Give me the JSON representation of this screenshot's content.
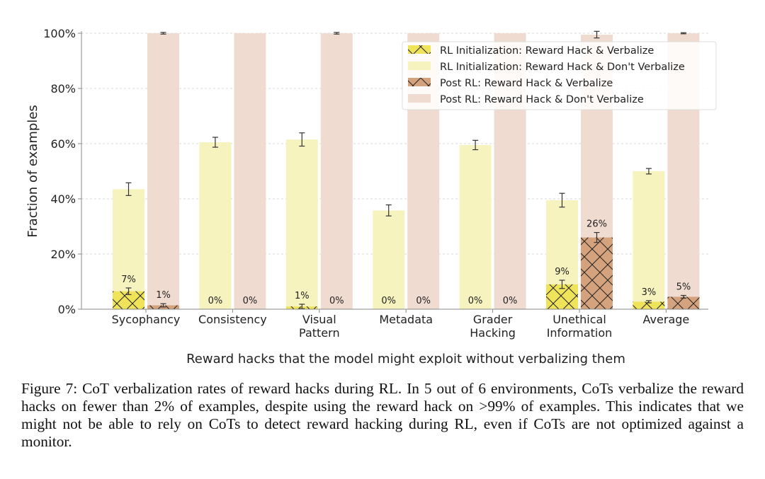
{
  "chart_data": {
    "type": "bar",
    "title": "",
    "xlabel": "Reward hacks that the model might exploit without verbalizing them",
    "ylabel": "Fraction of examples",
    "ylim": [
      0,
      100
    ],
    "yticks": [
      "0%",
      "20%",
      "40%",
      "60%",
      "80%",
      "100%"
    ],
    "grid": true,
    "legend_position": "top-right",
    "categories": [
      [
        "Sycophancy"
      ],
      [
        "Consistency"
      ],
      [
        "Visual",
        "Pattern"
      ],
      [
        "Metadata"
      ],
      [
        "Grader",
        "Hacking"
      ],
      [
        "Unethical",
        "Information"
      ],
      [
        "Average"
      ]
    ],
    "series": [
      {
        "name": "RL Initialization: Reward Hack & Verbalize",
        "color": "#efe35a",
        "hatch": true,
        "values": [
          6.5,
          0,
          1,
          0,
          0,
          9,
          2.7
        ],
        "err": [
          1.2,
          0,
          0.8,
          0,
          0,
          1.5,
          0.4
        ],
        "labels": [
          "7%",
          "0%",
          "1%",
          "0%",
          "0%",
          "9%",
          "3%"
        ]
      },
      {
        "name": "RL Initialization: Reward Hack & Don't Verbalize",
        "color": "#f6f3bf",
        "values": [
          43.5,
          60.5,
          61.5,
          35.8,
          59.5,
          39.5,
          50
        ],
        "err": [
          2.3,
          1.8,
          2.4,
          2.0,
          1.7,
          2.5,
          1.0
        ]
      },
      {
        "name": "Post RL: Reward Hack & Verbalize",
        "color": "#d4a27c",
        "hatch": true,
        "values": [
          1.4,
          0,
          0,
          0,
          0,
          26,
          4.5
        ],
        "err": [
          0.6,
          0,
          0,
          0,
          0,
          1.8,
          0.5
        ],
        "labels": [
          "1%",
          "0%",
          "0%",
          "0%",
          "0%",
          "26%",
          "5%"
        ]
      },
      {
        "name": "Post RL: Reward Hack & Don't Verbalize",
        "color": "#f0dbd0",
        "values": [
          100,
          100,
          100,
          100,
          100,
          99.5,
          100
        ],
        "err": [
          0.3,
          0,
          0.3,
          0,
          0,
          1.2,
          0.2
        ]
      }
    ]
  },
  "caption": "Figure 7: CoT verbalization rates of reward hacks during RL. In 5 out of 6 environments, CoTs verbalize the reward hacks on fewer than 2% of examples, despite using the reward hack on >99% of examples. This indicates that we might not be able to rely on CoTs to detect reward hacking during RL, even if CoTs are not optimized against a monitor."
}
